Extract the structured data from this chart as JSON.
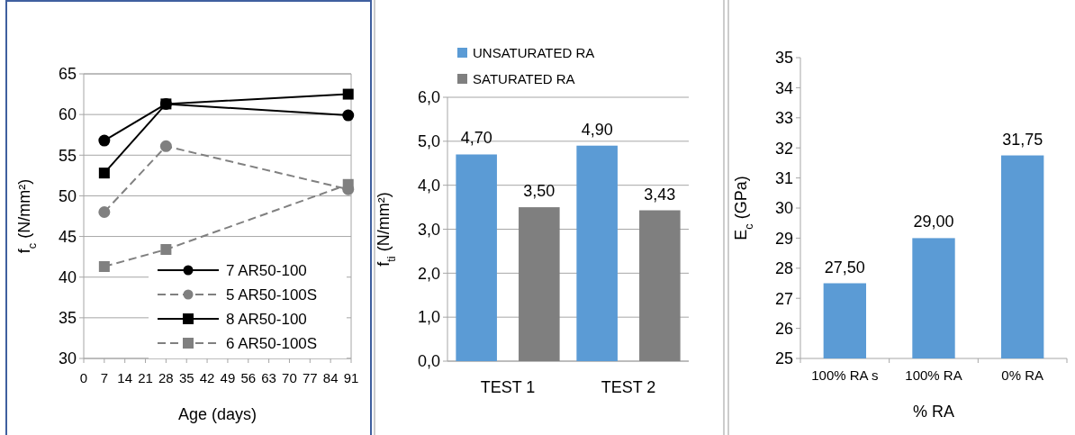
{
  "chart_data": [
    {
      "type": "line",
      "xlabel": "Age (days)",
      "ylabel": "f$_{c}$ (N/mm²)",
      "x": [
        7,
        28,
        90
      ],
      "xlim": [
        0,
        91
      ],
      "xticks": [
        0,
        7,
        14,
        21,
        28,
        35,
        42,
        49,
        56,
        63,
        70,
        77,
        84,
        91
      ],
      "ylim": [
        30,
        65
      ],
      "yticks": [
        30,
        35,
        40,
        45,
        50,
        55,
        60,
        65
      ],
      "grid": "y",
      "legend": "bottom right",
      "series": [
        {
          "name": "7 AR50-100",
          "color": "#000000",
          "marker": "circle",
          "line_style": "solid",
          "values": [
            56.8,
            61.3,
            59.9
          ]
        },
        {
          "name": "5 AR50-100S",
          "color": "#808080",
          "marker": "circle",
          "line_style": "dashed",
          "values": [
            48.0,
            56.1,
            50.8
          ]
        },
        {
          "name": "8 AR50-100",
          "color": "#000000",
          "marker": "square",
          "line_style": "solid",
          "values": [
            52.8,
            61.3,
            62.5
          ]
        },
        {
          "name": "6 AR50-100S",
          "color": "#808080",
          "marker": "square",
          "line_style": "dashed",
          "values": [
            41.3,
            43.4,
            51.4
          ]
        }
      ]
    },
    {
      "type": "bar",
      "ylabel": "f$_{ti}$ (N/mm²)",
      "categories": [
        "TEST 1",
        "TEST 2"
      ],
      "ylim": [
        0,
        6
      ],
      "yticks": [
        {
          "value": 0,
          "label": "0,0"
        },
        {
          "value": 1,
          "label": "1,0"
        },
        {
          "value": 2,
          "label": "2,0"
        },
        {
          "value": 3,
          "label": "3,0"
        },
        {
          "value": 4,
          "label": "4,0"
        },
        {
          "value": 5,
          "label": "5,0"
        },
        {
          "value": 6,
          "label": "6,0"
        }
      ],
      "grid": "y",
      "legend": "top",
      "series": [
        {
          "name": "UNSATURATED RA",
          "color": "#5b9bd5",
          "values": [
            4.7,
            4.9
          ],
          "value_labels": [
            "4,70",
            "4,90"
          ]
        },
        {
          "name": "SATURATED RA",
          "color": "#7f7f7f",
          "values": [
            3.5,
            3.43
          ],
          "value_labels": [
            "3,50",
            "3,43"
          ]
        }
      ]
    },
    {
      "type": "bar",
      "xlabel": "% RA",
      "ylabel": "E$_{c}$ (GPa)",
      "categories": [
        "100% RA s",
        "100% RA",
        "0% RA"
      ],
      "ylim": [
        25,
        35
      ],
      "yticks": [
        25,
        26,
        27,
        28,
        29,
        30,
        31,
        32,
        33,
        34,
        35
      ],
      "color": "#5b9bd5",
      "values": [
        27.5,
        29.0,
        31.75
      ],
      "value_labels": [
        "27,50",
        "29,00",
        "31,75"
      ]
    }
  ]
}
